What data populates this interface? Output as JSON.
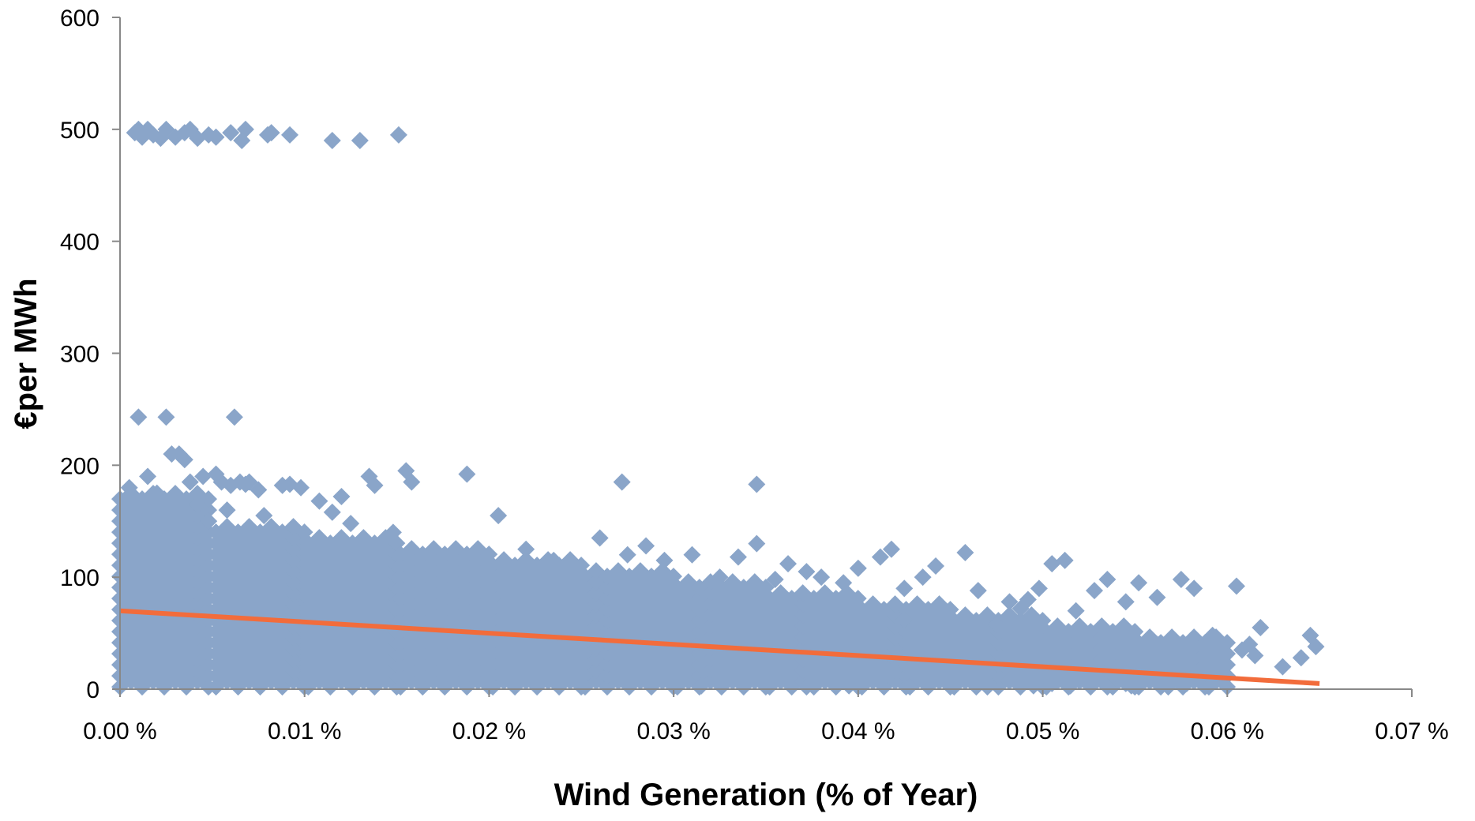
{
  "chart_data": {
    "type": "scatter",
    "title": "",
    "xlabel": "Wind Generation (% of Year)",
    "ylabel": "€per MWh",
    "xlim": [
      0,
      0.07
    ],
    "ylim": [
      0,
      600
    ],
    "x_ticks": [
      0,
      0.01,
      0.02,
      0.03,
      0.04,
      0.05,
      0.06,
      0.07
    ],
    "x_tick_labels": [
      "0.00 %",
      "0.01 %",
      "0.02 %",
      "0.03 %",
      "0.04 %",
      "0.05 %",
      "0.06 %",
      "0.07 %"
    ],
    "y_ticks": [
      0,
      100,
      200,
      300,
      400,
      500,
      600
    ],
    "y_tick_labels": [
      "0",
      "100",
      "200",
      "300",
      "400",
      "500",
      "600"
    ],
    "grid": false,
    "legend": "none",
    "series": [
      {
        "kind": "points",
        "marker": "diamond",
        "color": "#8aa5c9",
        "x": [
          0.0008,
          0.001,
          0.0012,
          0.0015,
          0.0018,
          0.0022,
          0.0025,
          0.003,
          0.0035,
          0.0038,
          0.0042,
          0.0048,
          0.0052,
          0.006,
          0.0066,
          0.0068,
          0.008,
          0.0082,
          0.0092,
          0.0115,
          0.013,
          0.0151,
          0.001,
          0.0025,
          0.0062,
          0.0028,
          0.0035,
          0.0032,
          0.0038,
          0.0045,
          0.0052,
          0.0055,
          0.006,
          0.0065,
          0.0068,
          0.007,
          0.0075,
          0.0088,
          0.0092,
          0.0098,
          0.0108,
          0.0115,
          0.012,
          0.0135,
          0.0138,
          0.0155,
          0.0158,
          0.0188,
          0.0205,
          0.0272,
          0.0345,
          0.0005,
          0.0015,
          0.002,
          0.0042,
          0.0048,
          0.0058,
          0.0078,
          0.0125,
          0.0148,
          0.022,
          0.0235,
          0.0245,
          0.026,
          0.0275,
          0.0285,
          0.0295,
          0.031,
          0.0325,
          0.0335,
          0.0345,
          0.0355,
          0.0362,
          0.0372,
          0.038,
          0.0392,
          0.04,
          0.0412,
          0.0418,
          0.0425,
          0.0435,
          0.0442,
          0.0458,
          0.0465,
          0.0482,
          0.0488,
          0.0492,
          0.0498,
          0.0505,
          0.0512,
          0.0518,
          0.0528,
          0.0535,
          0.0545,
          0.0552,
          0.0562,
          0.0575,
          0.0582,
          0.0592,
          0.0595,
          0.0605,
          0.0612,
          0.0618,
          0.063,
          0.0645,
          0.0648,
          0.0305,
          0.0338,
          0.0362,
          0.0398,
          0.0425,
          0.0445,
          0.0458,
          0.0475,
          0.0492,
          0.0505,
          0.0522,
          0.0538,
          0.0548,
          0.0562,
          0.0572,
          0.0582,
          0.0595,
          0.0608,
          0.0615,
          0.064,
          0.0305,
          0.0325,
          0.0352,
          0.0378,
          0.0405,
          0.0418,
          0.0438,
          0.0448,
          0.0468,
          0.0482,
          0.0505,
          0.0518,
          0.0525,
          0.0545,
          0.0555,
          0.0565,
          0.0578,
          0.0588,
          0.0315,
          0.035,
          0.0372,
          0.0395,
          0.0428,
          0.045,
          0.047,
          0.0495,
          0.0515,
          0.0535,
          0.0548,
          0.0568,
          0.059
        ],
        "y": [
          497,
          500,
          493,
          500,
          495,
          492,
          500,
          493,
          497,
          500,
          492,
          495,
          493,
          497,
          490,
          500,
          495,
          497,
          495,
          490,
          490,
          495,
          243,
          243,
          243,
          210,
          205,
          210,
          185,
          190,
          192,
          185,
          182,
          185,
          183,
          185,
          178,
          182,
          183,
          180,
          168,
          158,
          172,
          190,
          182,
          195,
          185,
          192,
          155,
          185,
          183,
          180,
          190,
          175,
          165,
          150,
          160,
          155,
          148,
          140,
          125,
          115,
          110,
          135,
          120,
          128,
          115,
          120,
          100,
          118,
          130,
          98,
          112,
          105,
          100,
          95,
          108,
          118,
          125,
          90,
          100,
          110,
          122,
          88,
          78,
          72,
          80,
          90,
          112,
          115,
          70,
          88,
          98,
          78,
          95,
          82,
          98,
          90,
          48,
          38,
          92,
          40,
          55,
          20,
          48,
          38,
          70,
          65,
          68,
          60,
          62,
          55,
          60,
          58,
          55,
          50,
          52,
          48,
          45,
          40,
          42,
          38,
          35,
          35,
          30,
          28,
          20,
          15,
          18,
          12,
          10,
          15,
          8,
          12,
          10,
          8,
          5,
          8,
          10,
          5,
          8,
          6,
          5,
          3,
          3,
          3,
          2,
          3,
          2,
          3,
          2,
          3,
          3,
          2,
          3,
          2,
          2
        ]
      },
      {
        "kind": "band",
        "marker": "diamond",
        "color": "#8aa5c9",
        "x_max": [
          0.0052,
          0.0102,
          0.0152,
          0.0202,
          0.0252,
          0.0302,
          0.0352,
          0.0402,
          0.0452,
          0.0502,
          0.0552,
          0.0602
        ],
        "y_low": [
          2,
          2,
          2,
          2,
          2,
          2,
          2,
          2,
          2,
          2,
          2,
          2
        ],
        "y_high": [
          175,
          148,
          132,
          125,
          112,
          108,
          98,
          88,
          78,
          70,
          58,
          45
        ]
      },
      {
        "kind": "trendline",
        "color": "#f26c3b",
        "x": [
          0,
          0.065
        ],
        "y": [
          70,
          5
        ]
      }
    ]
  }
}
